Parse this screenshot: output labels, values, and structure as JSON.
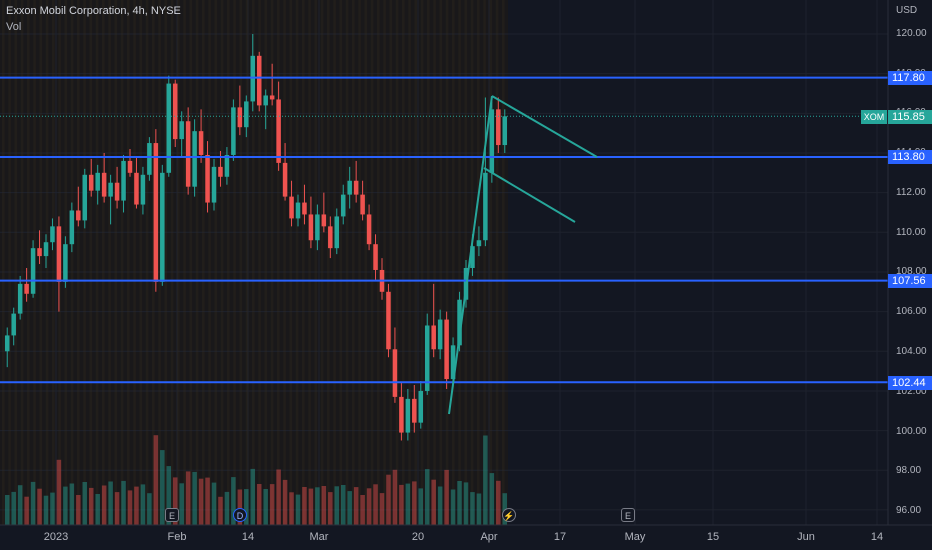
{
  "header": {
    "symbol_title": "Exxon Mobil Corporation, 4h, NYSE",
    "volume_label": "Vol",
    "currency": "USD"
  },
  "price_axis": {
    "ticks": [
      "120.00",
      "118.00",
      "116.00",
      "114.00",
      "112.00",
      "110.00",
      "108.00",
      "106.00",
      "104.00",
      "102.00",
      "100.00",
      "98.00",
      "96.00"
    ]
  },
  "time_axis": {
    "ticks": [
      "2023",
      "Feb",
      "14",
      "Mar",
      "20",
      "Apr",
      "17",
      "May",
      "15",
      "Jun",
      "14"
    ]
  },
  "horizontal_lines": [
    {
      "label": "117.80",
      "price": 117.8,
      "color": "#2962ff"
    },
    {
      "label": "113.80",
      "price": 113.8,
      "color": "#2962ff"
    },
    {
      "label": "107.56",
      "price": 107.56,
      "color": "#2962ff"
    },
    {
      "label": "102.44",
      "price": 102.44,
      "color": "#2962ff"
    }
  ],
  "current_price": {
    "ticker": "XOM",
    "value": "115.85",
    "color": "#26a69a"
  },
  "events": [
    {
      "type": "earnings",
      "glyph": "E"
    },
    {
      "type": "dividend",
      "glyph": "D"
    },
    {
      "type": "split-flash",
      "glyph": "⚡"
    },
    {
      "type": "earnings",
      "glyph": "E"
    }
  ],
  "colors": {
    "background": "#131722",
    "up": "#26a69a",
    "down": "#ef5350",
    "line_tool": "#26a69a",
    "hline": "#2962ff"
  },
  "chart_data": {
    "type": "candlestick",
    "title": "Exxon Mobil Corporation, 4h, NYSE",
    "ylabel": "USD",
    "ylim": [
      95.5,
      121.0
    ],
    "grid": true,
    "candles": [
      [
        104.0,
        105.2,
        103.2,
        104.8
      ],
      [
        104.8,
        106.2,
        104.3,
        105.9
      ],
      [
        105.9,
        107.8,
        105.6,
        107.4
      ],
      [
        107.4,
        108.2,
        106.5,
        106.9
      ],
      [
        106.9,
        109.6,
        106.7,
        109.2
      ],
      [
        109.2,
        110.1,
        108.4,
        108.8
      ],
      [
        108.8,
        109.9,
        108.2,
        109.5
      ],
      [
        109.5,
        110.7,
        109.1,
        110.3
      ],
      [
        110.3,
        110.8,
        106.0,
        107.5
      ],
      [
        107.5,
        109.8,
        107.2,
        109.4
      ],
      [
        109.4,
        111.5,
        109.0,
        111.1
      ],
      [
        111.1,
        112.3,
        110.3,
        110.6
      ],
      [
        110.6,
        113.2,
        110.2,
        112.9
      ],
      [
        112.9,
        113.7,
        111.8,
        112.1
      ],
      [
        112.1,
        113.4,
        111.4,
        113.0
      ],
      [
        113.0,
        114.0,
        111.5,
        111.8
      ],
      [
        111.8,
        112.9,
        110.4,
        112.5
      ],
      [
        112.5,
        113.3,
        111.2,
        111.6
      ],
      [
        111.6,
        113.9,
        111.0,
        113.6
      ],
      [
        113.6,
        114.2,
        112.8,
        113.0
      ],
      [
        113.0,
        113.8,
        111.2,
        111.4
      ],
      [
        111.4,
        113.3,
        110.9,
        112.9
      ],
      [
        112.9,
        114.8,
        112.6,
        114.5
      ],
      [
        114.5,
        115.2,
        107.0,
        107.5
      ],
      [
        107.5,
        113.4,
        107.3,
        113.0
      ],
      [
        113.0,
        117.9,
        112.8,
        117.5
      ],
      [
        117.5,
        117.7,
        114.3,
        114.7
      ],
      [
        114.7,
        116.1,
        113.8,
        115.6
      ],
      [
        115.6,
        116.3,
        111.9,
        112.3
      ],
      [
        112.3,
        115.7,
        111.8,
        115.1
      ],
      [
        115.1,
        116.2,
        113.5,
        113.9
      ],
      [
        113.9,
        114.6,
        111.0,
        111.5
      ],
      [
        111.5,
        113.7,
        111.1,
        113.3
      ],
      [
        113.3,
        114.1,
        112.3,
        112.8
      ],
      [
        112.8,
        114.3,
        112.4,
        113.9
      ],
      [
        113.9,
        116.7,
        113.6,
        116.3
      ],
      [
        116.3,
        117.4,
        114.9,
        115.3
      ],
      [
        115.3,
        116.9,
        114.8,
        116.6
      ],
      [
        116.6,
        120.0,
        116.1,
        118.9
      ],
      [
        118.9,
        119.1,
        116.1,
        116.4
      ],
      [
        116.4,
        117.2,
        115.2,
        116.9
      ],
      [
        116.9,
        118.5,
        116.4,
        116.7
      ],
      [
        116.7,
        117.6,
        113.1,
        113.5
      ],
      [
        113.5,
        114.5,
        111.6,
        111.8
      ],
      [
        111.8,
        112.6,
        110.3,
        110.7
      ],
      [
        110.7,
        111.9,
        110.3,
        111.5
      ],
      [
        111.5,
        112.4,
        110.4,
        110.9
      ],
      [
        110.9,
        111.8,
        109.2,
        109.6
      ],
      [
        109.6,
        111.4,
        109.1,
        110.9
      ],
      [
        110.9,
        112.0,
        110.0,
        110.3
      ],
      [
        110.3,
        110.8,
        108.7,
        109.2
      ],
      [
        109.2,
        111.2,
        108.9,
        110.8
      ],
      [
        110.8,
        112.4,
        110.4,
        111.9
      ],
      [
        111.9,
        113.3,
        111.2,
        112.6
      ],
      [
        112.6,
        113.6,
        111.5,
        111.9
      ],
      [
        111.9,
        112.6,
        110.6,
        110.9
      ],
      [
        110.9,
        111.4,
        109.1,
        109.4
      ],
      [
        109.4,
        109.9,
        107.6,
        108.1
      ],
      [
        108.1,
        108.7,
        106.6,
        107.0
      ],
      [
        107.0,
        107.4,
        103.7,
        104.1
      ],
      [
        104.1,
        105.2,
        101.4,
        101.7
      ],
      [
        101.7,
        102.4,
        99.5,
        99.9
      ],
      [
        99.9,
        102.1,
        99.5,
        101.6
      ],
      [
        101.6,
        102.3,
        99.9,
        100.4
      ],
      [
        100.4,
        102.5,
        100.1,
        102.0
      ],
      [
        102.0,
        105.9,
        101.8,
        105.3
      ],
      [
        105.3,
        107.4,
        103.7,
        104.1
      ],
      [
        104.1,
        106.1,
        103.6,
        105.6
      ],
      [
        105.6,
        106.0,
        102.1,
        102.6
      ],
      [
        102.6,
        104.7,
        102.2,
        104.3
      ],
      [
        104.3,
        107.0,
        104.0,
        106.6
      ],
      [
        106.6,
        108.6,
        106.2,
        108.2
      ],
      [
        108.2,
        109.9,
        107.8,
        109.3
      ],
      [
        109.3,
        110.3,
        108.8,
        109.6
      ],
      [
        109.6,
        116.8,
        109.3,
        113.0
      ],
      [
        113.0,
        116.6,
        112.5,
        116.2
      ],
      [
        116.2,
        116.8,
        114.0,
        114.4
      ],
      [
        114.4,
        116.2,
        114.0,
        115.85
      ]
    ],
    "annotations": [
      {
        "type": "trend-line",
        "from": {
          "time": "late Mar",
          "price": 101.0
        },
        "to": {
          "time": "early Apr",
          "price": 116.8
        }
      },
      {
        "type": "trend-line",
        "from": {
          "time": "early Apr",
          "price": 116.8
        },
        "to": {
          "time": "mid Apr",
          "price": 113.8
        }
      },
      {
        "type": "trend-line",
        "from": {
          "time": "early Apr",
          "price": 113.2
        },
        "to": {
          "time": "mid Apr",
          "price": 110.5
        }
      }
    ]
  }
}
